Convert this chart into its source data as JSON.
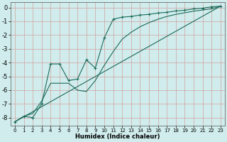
{
  "xlabel": "Humidex (Indice chaleur)",
  "background_color": "#d0ecec",
  "grid_color": "#b0d4d4",
  "line_color": "#1a6b5a",
  "xlim": [
    -0.5,
    23.5
  ],
  "ylim": [
    -8.6,
    0.4
  ],
  "xticks": [
    0,
    1,
    2,
    3,
    4,
    5,
    6,
    7,
    8,
    9,
    10,
    11,
    12,
    13,
    14,
    15,
    16,
    17,
    18,
    19,
    20,
    21,
    22,
    23
  ],
  "yticks": [
    0,
    -1,
    -2,
    -3,
    -4,
    -5,
    -6,
    -7,
    -8
  ],
  "series": [
    {
      "x": [
        0,
        1,
        2,
        3,
        4,
        5,
        6,
        7,
        8,
        9,
        10,
        11,
        12,
        13,
        14,
        15,
        16,
        17,
        18,
        19,
        20,
        21,
        22,
        23
      ],
      "y": [
        -8.3,
        -7.9,
        -8.0,
        -7.0,
        -4.1,
        -4.1,
        -5.3,
        -5.2,
        -3.8,
        -4.4,
        -2.2,
        -0.85,
        -0.7,
        -0.65,
        -0.55,
        -0.5,
        -0.4,
        -0.35,
        -0.25,
        -0.2,
        -0.1,
        -0.05,
        0.05,
        0.1
      ],
      "has_markers": true
    },
    {
      "x": [
        0,
        23
      ],
      "y": [
        -8.3,
        0.1
      ],
      "has_markers": false
    },
    {
      "x": [
        0,
        1,
        2,
        3,
        4,
        5,
        6,
        7,
        8,
        9,
        10,
        11,
        12,
        13,
        14,
        15,
        16,
        17,
        18,
        19,
        20,
        21,
        22,
        23
      ],
      "y": [
        -8.3,
        -7.9,
        -7.7,
        -6.8,
        -5.5,
        -5.5,
        -5.5,
        -6.0,
        -6.1,
        -5.3,
        -4.2,
        -3.2,
        -2.3,
        -1.8,
        -1.4,
        -1.1,
        -0.85,
        -0.65,
        -0.5,
        -0.38,
        -0.27,
        -0.18,
        -0.1,
        0.1
      ],
      "has_markers": false
    }
  ]
}
